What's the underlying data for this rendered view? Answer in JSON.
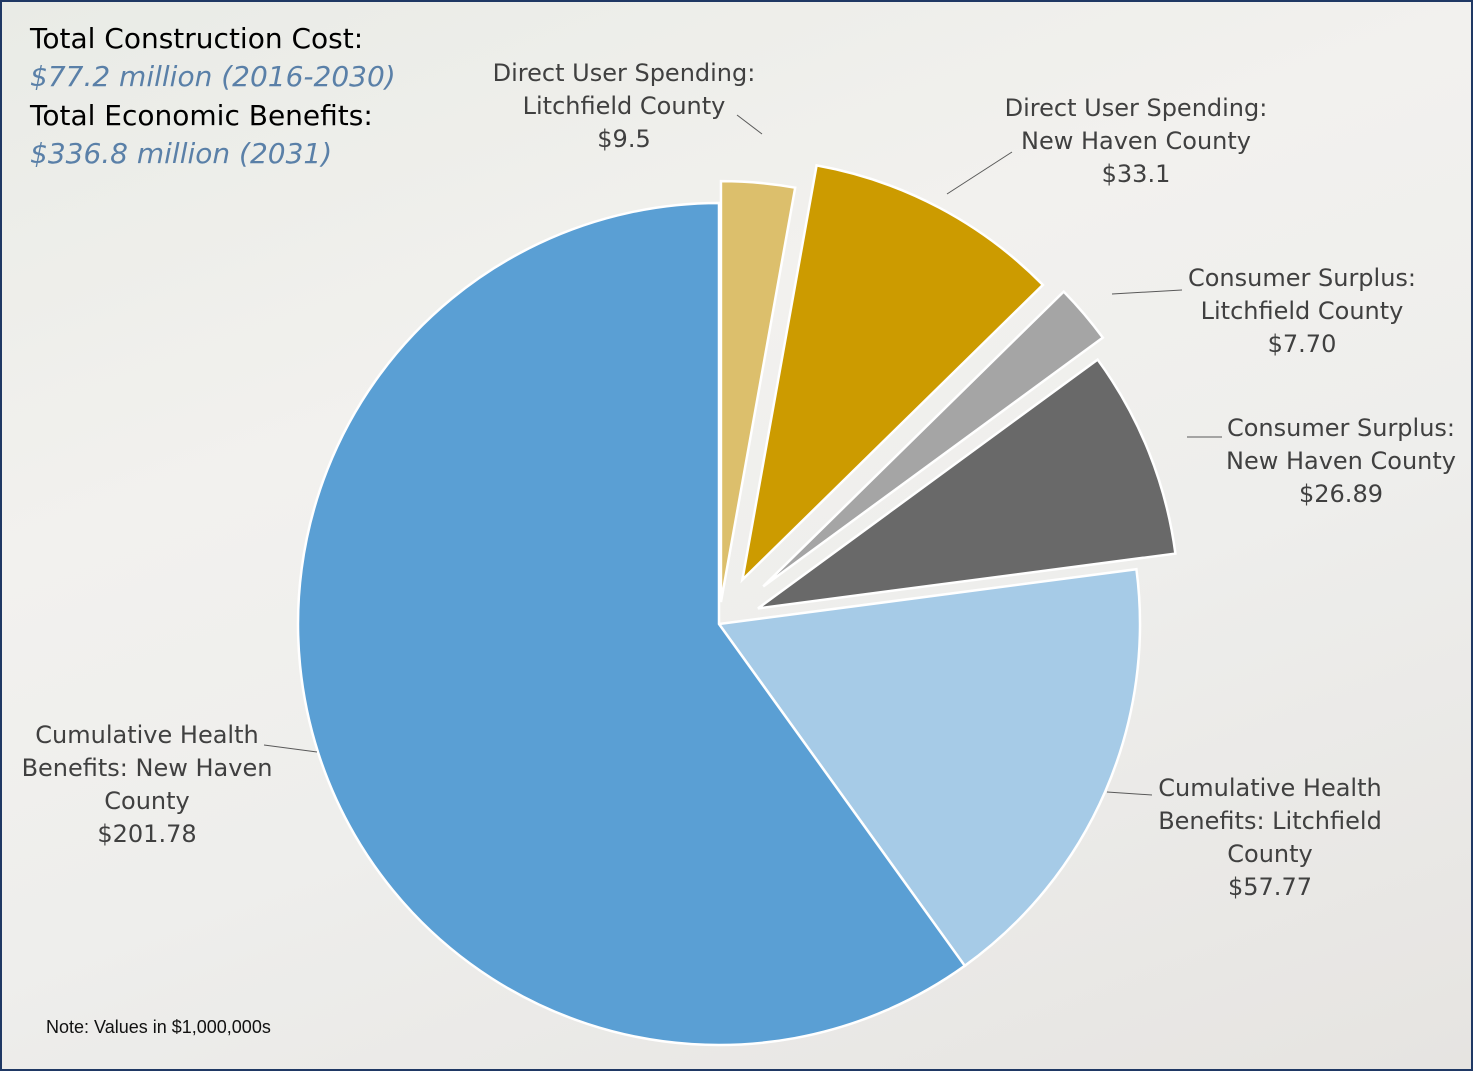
{
  "header": {
    "cost_label": "Total Construction Cost:",
    "cost_value": "$77.2 million (2016-2030)",
    "benefit_label": "Total Economic Benefits:",
    "benefit_value": "$336.8 million (2031)"
  },
  "note": "Note: Values in $1,000,000s",
  "chart_data": {
    "type": "pie",
    "categories": [
      "Direct User Spending: Litchfield County",
      "Direct User Spending: New Haven County",
      "Consumer Surplus: Litchfield County",
      "Consumer Surplus: New Haven County",
      "Cumulative Health Benefits: Litchfield County",
      "Cumulative Health Benefits: New Haven County"
    ],
    "values": [
      9.5,
      33.1,
      7.7,
      26.89,
      57.77,
      201.78
    ],
    "value_labels": [
      "$9.5",
      "$33.1",
      "$7.70",
      "$26.89",
      "$57.77",
      "$201.78"
    ],
    "colors": [
      "#dcbf6c",
      "#cc9b00",
      "#a5a5a5",
      "#696969",
      "#a6cbe7",
      "#5a9fd4"
    ]
  }
}
